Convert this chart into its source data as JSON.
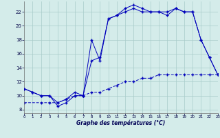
{
  "xlabel": "Graphe des températures (°C)",
  "bg_color": "#d4ecea",
  "grid_color": "#a8ccca",
  "line_color": "#0000bb",
  "xlim": [
    0,
    23
  ],
  "ylim": [
    7.5,
    23.5
  ],
  "x_ticks": [
    0,
    1,
    2,
    3,
    4,
    5,
    6,
    7,
    8,
    9,
    10,
    11,
    12,
    13,
    14,
    15,
    16,
    17,
    18,
    19,
    20,
    21,
    22,
    23
  ],
  "y_ticks": [
    8,
    10,
    12,
    14,
    16,
    18,
    20,
    22
  ],
  "line1_x": [
    0,
    1,
    2,
    3,
    4,
    5,
    6,
    7,
    8,
    9,
    10,
    11,
    12,
    13,
    14,
    15,
    16,
    17,
    18,
    19,
    20,
    21,
    22,
    23
  ],
  "line1_y": [
    11.0,
    10.5,
    10.0,
    10.0,
    8.5,
    9.0,
    10.0,
    10.0,
    18.0,
    15.0,
    21.0,
    21.5,
    22.5,
    23.0,
    22.5,
    22.0,
    22.0,
    22.0,
    22.5,
    22.0,
    22.0,
    18.0,
    15.5,
    13.0
  ],
  "line2_x": [
    0,
    1,
    2,
    3,
    4,
    5,
    6,
    7,
    8,
    9,
    10,
    11,
    12,
    13,
    14,
    15,
    16,
    17,
    18,
    19,
    20,
    21,
    22,
    23
  ],
  "line2_y": [
    11.0,
    10.5,
    10.0,
    10.0,
    9.0,
    9.5,
    10.5,
    10.0,
    15.0,
    15.5,
    21.0,
    21.5,
    22.0,
    22.5,
    22.0,
    22.0,
    22.0,
    21.5,
    22.5,
    22.0,
    22.0,
    18.0,
    15.5,
    13.0
  ],
  "line3_x": [
    0,
    2,
    3,
    4,
    5,
    6,
    7,
    8,
    9,
    10,
    11,
    12,
    13,
    14,
    15,
    16,
    17,
    18,
    19,
    20,
    21,
    22,
    23
  ],
  "line3_y": [
    9.0,
    9.0,
    9.0,
    9.0,
    9.5,
    10.0,
    10.0,
    10.5,
    10.5,
    11.0,
    11.5,
    12.0,
    12.0,
    12.5,
    12.5,
    13.0,
    13.0,
    13.0,
    13.0,
    13.0,
    13.0,
    13.0,
    13.0
  ]
}
